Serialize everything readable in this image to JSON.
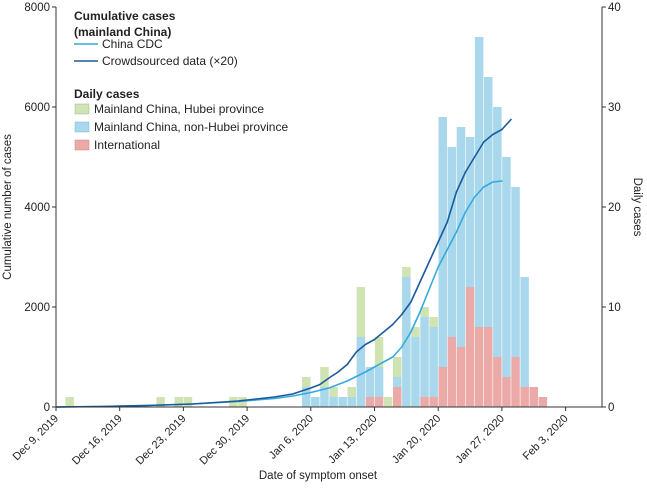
{
  "chart_data": {
    "type": "bar",
    "title": "",
    "xlabel": "Date of symptom onset",
    "ylabel": "Cumulative number of cases",
    "y2label": "Daily cases",
    "ylim": [
      0,
      8000
    ],
    "y2lim": [
      0,
      40
    ],
    "yticks": [
      0,
      2000,
      4000,
      6000,
      8000
    ],
    "y2ticks": [
      0,
      10,
      20,
      30,
      40
    ],
    "x_day_range": [
      0,
      60
    ],
    "x_ticks": [
      {
        "day": 0,
        "label": "Dec 9, 2019"
      },
      {
        "day": 7,
        "label": "Dec 16, 2019"
      },
      {
        "day": 14,
        "label": "Dec 23, 2019"
      },
      {
        "day": 21,
        "label": "Dec 30, 2019"
      },
      {
        "day": 28,
        "label": "Jan 6, 2020"
      },
      {
        "day": 35,
        "label": "Jan 13, 2020"
      },
      {
        "day": 42,
        "label": "Jan 20, 2020"
      },
      {
        "day": 49,
        "label": "Jan 27, 2020"
      },
      {
        "day": 56,
        "label": "Feb 3, 2020"
      }
    ],
    "legend": {
      "cum_header": "Cumulative cases\n(mainland China)",
      "cdc_label": "China CDC",
      "crowd_label": "Crowdsourced data (×20)",
      "daily_header": "Daily cases",
      "hubei_label": "Mainland China, Hubei province",
      "nonhubei_label": "Mainland China, non-Hubei province",
      "intl_label": "International"
    },
    "colors": {
      "hubei": "#cfe3b3",
      "nonhubei": "#a9d8ec",
      "intl": "#eba9a8",
      "cdc": "#35a9dc",
      "crowd": "#1b5a9d"
    },
    "daily_series": [
      {
        "name": "Mainland China, Hubei province",
        "key": "hubei",
        "days": [
          1,
          11,
          13,
          14,
          19,
          20,
          27,
          29,
          30,
          32,
          33,
          35,
          36,
          37,
          38,
          39,
          40,
          41
        ],
        "values": [
          1,
          1,
          1,
          1,
          1,
          1,
          1,
          2,
          1,
          1,
          5,
          3,
          1,
          2,
          1,
          1,
          1,
          1
        ]
      },
      {
        "name": "Mainland China, non-Hubei province",
        "key": "nonhubei",
        "days": [
          27,
          28,
          29,
          30,
          31,
          32,
          33,
          34,
          35,
          37,
          38,
          39,
          40,
          41,
          42,
          43,
          44,
          45,
          46,
          47,
          48,
          49,
          50,
          51
        ],
        "values": [
          2,
          1,
          2,
          1,
          1,
          1,
          7,
          3,
          3,
          1,
          13,
          7,
          8,
          7,
          25,
          19,
          22,
          15,
          29,
          25,
          25,
          22,
          17,
          11
        ]
      },
      {
        "name": "International",
        "key": "intl",
        "days": [
          34,
          35,
          37,
          40,
          41,
          42,
          43,
          44,
          45,
          46,
          47,
          48,
          49,
          50,
          51,
          52,
          53
        ],
        "values": [
          1,
          1,
          2,
          1,
          1,
          4,
          7,
          6,
          12,
          8,
          8,
          5,
          3,
          5,
          2,
          2,
          1
        ]
      }
    ],
    "cumulative_series": [
      {
        "name": "China CDC",
        "key": "cdc",
        "x": [
          0,
          5,
          10,
          15,
          20,
          22,
          24,
          26,
          28,
          30,
          32,
          34,
          35,
          36,
          37,
          38,
          39,
          40,
          41,
          42,
          43,
          44,
          45,
          46,
          47,
          48,
          49
        ],
        "y": [
          0,
          10,
          30,
          60,
          110,
          140,
          170,
          220,
          290,
          380,
          520,
          700,
          800,
          900,
          1000,
          1200,
          1500,
          1900,
          2350,
          2800,
          3150,
          3500,
          3900,
          4200,
          4400,
          4500,
          4520
        ]
      },
      {
        "name": "Crowdsourced data (×20)",
        "key": "crowd",
        "x": [
          0,
          5,
          10,
          15,
          20,
          22,
          24,
          26,
          28,
          29,
          30,
          31,
          32,
          33,
          34,
          35,
          36,
          37,
          38,
          39,
          40,
          41,
          42,
          43,
          44,
          45,
          46,
          47,
          48,
          49,
          50
        ],
        "y": [
          0,
          10,
          30,
          60,
          120,
          160,
          200,
          260,
          380,
          450,
          580,
          700,
          850,
          1100,
          1250,
          1350,
          1500,
          1650,
          1850,
          2100,
          2500,
          2900,
          3300,
          3700,
          4300,
          4700,
          5000,
          5300,
          5450,
          5550,
          5750
        ]
      }
    ]
  }
}
